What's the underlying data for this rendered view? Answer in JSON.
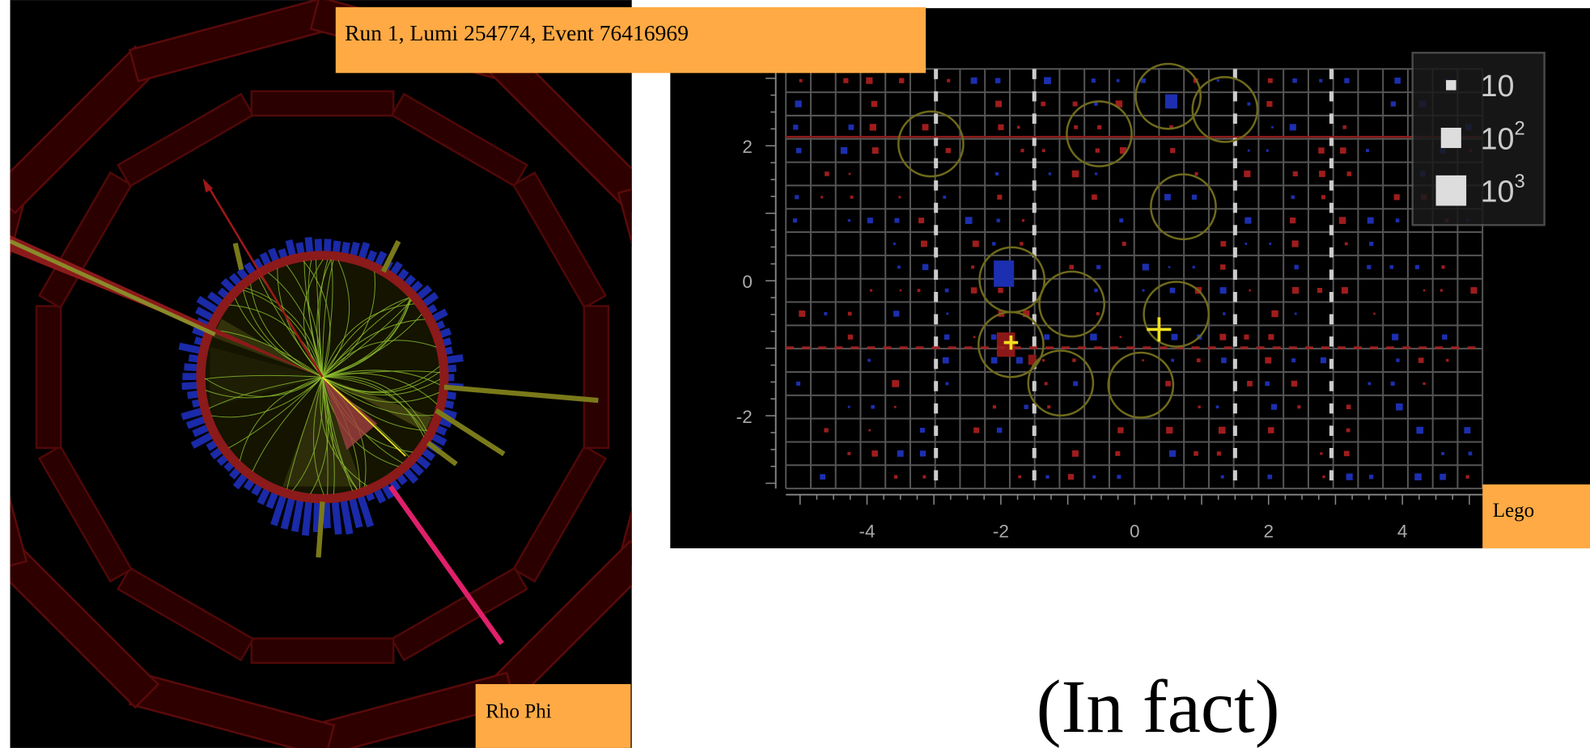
{
  "header": {
    "event_label": "Run 1, Lumi 254774, Event 76416969"
  },
  "rho_phi": {
    "label": "Rho Phi"
  },
  "lego": {
    "label": "Lego",
    "x_ticks": [
      -4,
      -2,
      0,
      2,
      4
    ],
    "y_ticks": [
      2,
      0,
      -2
    ],
    "legend": [
      {
        "base": "10"
      },
      {
        "base": "10",
        "exponent": "2"
      },
      {
        "base": "10",
        "exponent": "3"
      }
    ]
  },
  "caption": "(In fact)"
}
